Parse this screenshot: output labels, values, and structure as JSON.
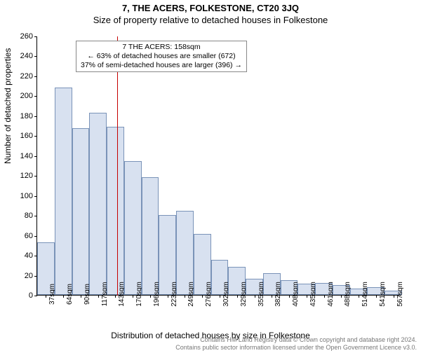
{
  "header": {
    "title": "7, THE ACERS, FOLKESTONE, CT20 3JQ",
    "subtitle": "Size of property relative to detached houses in Folkestone"
  },
  "ylabel": "Number of detached properties",
  "xlabel": "Distribution of detached houses by size in Folkestone",
  "chart": {
    "type": "histogram",
    "ylim": [
      0,
      260
    ],
    "ytick_step": 20,
    "xticks": [
      "37sqm",
      "64sqm",
      "90sqm",
      "117sqm",
      "143sqm",
      "170sqm",
      "196sqm",
      "223sqm",
      "249sqm",
      "276sqm",
      "302sqm",
      "329sqm",
      "355sqm",
      "382sqm",
      "408sqm",
      "435sqm",
      "461sqm",
      "488sqm",
      "514sqm",
      "541sqm",
      "567sqm"
    ],
    "values": [
      53,
      208,
      167,
      183,
      169,
      134,
      118,
      80,
      84,
      61,
      35,
      28,
      16,
      22,
      15,
      11,
      12,
      10,
      6,
      8,
      4
    ],
    "bar_fill": "#d8e1f0",
    "bar_stroke": "#7a93b8",
    "background_color": "#ffffff",
    "refline": {
      "x_index": 4.6,
      "color": "#c60000",
      "property_sqm": 158
    },
    "annotation": {
      "line1": "7 THE ACERS: 158sqm",
      "line2": "← 63% of detached houses are smaller (672)",
      "line3": "37% of semi-detached houses are larger (396) →"
    }
  },
  "footer": {
    "line1": "Contains HM Land Registry data © Crown copyright and database right 2024.",
    "line2": "Contains public sector information licensed under the Open Government Licence v3.0."
  }
}
